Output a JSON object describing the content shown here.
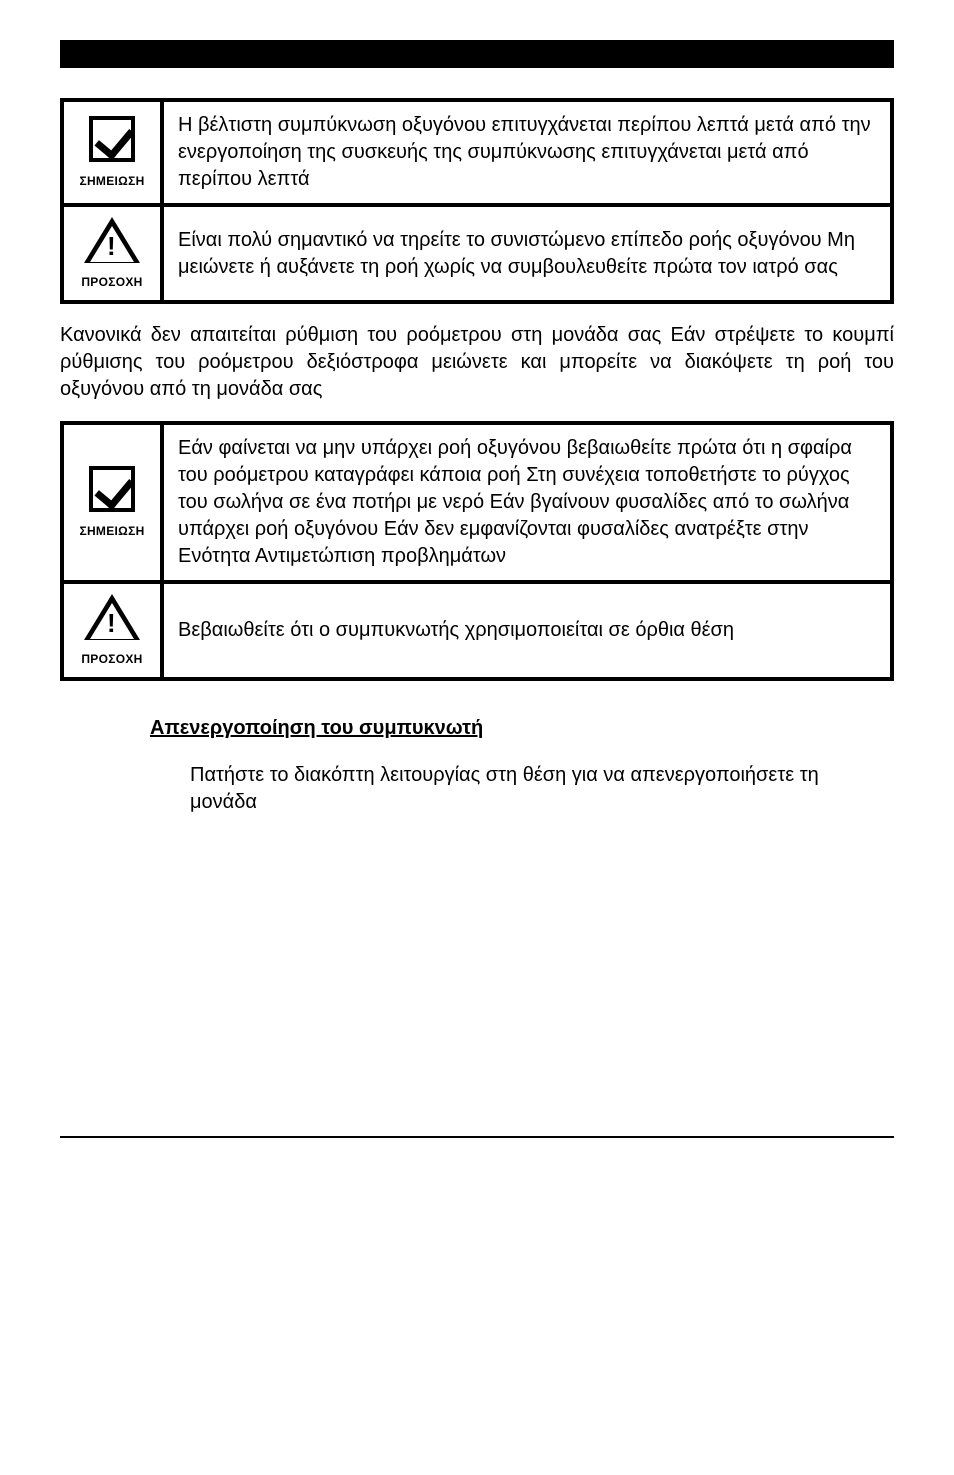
{
  "bar": {},
  "callout1": {
    "noteLabel": "ΣΗΜΕΙΩΣΗ",
    "cautionLabel": "ΠΡΟΣΟΧΗ",
    "noteText": "Η βέλτιστη συμπύκνωση οξυγόνου επιτυγχάνεται περίπου    λεπτά μετά από την ενεργοποίηση της συσκευής       της συμπύκνωσης επιτυγχάνεται μετά από περίπου    λεπτά",
    "cautionText": "Είναι πολύ σημαντικό να τηρείτε το συνιστώμενο επίπεδο ροής οξυγόνου  Μη μειώνετε ή αυξάνετε τη ροή χωρίς να συμβουλευθείτε πρώτα τον ιατρό σας"
  },
  "para1": "Κανονικά δεν απαιτείται ρύθμιση του ροόμετρου στη μονάδα σας  Εάν στρέψετε το κουμπί ρύθμισης του ροόμετρου δεξιόστροφα  μειώνετε και μπορείτε να διακόψετε τη ροή του οξυγόνου από τη μονάδα σας",
  "callout2": {
    "noteLabel": "ΣΗΜΕΙΩΣΗ",
    "cautionLabel": "ΠΡΟΣΟΧΗ",
    "noteText": "Εάν φαίνεται να μην υπάρχει ροή οξυγόνου  βεβαιωθείτε πρώτα ότι η σφαίρα του ροόμετρου καταγράφει κάποια ροή  Στη συνέχεια  τοποθετήστε το ρύγχος του σωλήνα σε ένα ποτήρι με νερό  Εάν βγαίνουν φυσαλίδες από το σωλήνα  υπάρχει ροή οξυγόνου  Εάν δεν εμφανίζονται φυσαλίδες  ανατρέξτε στην Ενότητα        Αντιμετώπιση προβλημάτων",
    "cautionText": "Βεβαιωθείτε ότι ο συμπυκνωτής χρησιμοποιείται σε όρθια θέση"
  },
  "heading": "Απενεργοποίηση του συμπυκνωτή",
  "step": "Πατήστε το διακόπτη λειτουργίας       στη θέση       για να απενεργοποιήσετε τη μονάδα"
}
